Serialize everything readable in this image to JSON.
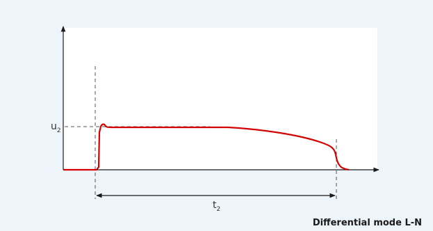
{
  "diagram": {
    "voltage_label": "u",
    "voltage_subscript": "2",
    "duration_label": "t",
    "duration_subscript": "2",
    "caption": "Differential mode L-N",
    "colors": {
      "background": "#edf4fa",
      "plot_area": "#ffffff",
      "pulse": "#d40000",
      "axis": "#1a1a1a",
      "guide": "#555555"
    }
  }
}
